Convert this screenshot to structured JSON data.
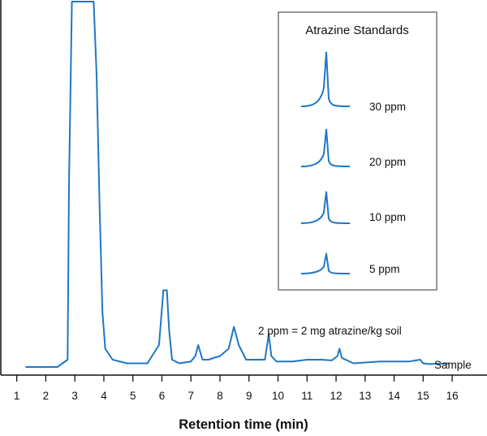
{
  "chart_data": {
    "type": "line",
    "title": "",
    "xlabel": "Retention time (min)",
    "ylabel": "",
    "x_ticks": [
      1,
      2,
      3,
      4,
      5,
      6,
      7,
      8,
      9,
      10,
      11,
      12,
      13,
      14,
      15,
      16
    ],
    "xlim": [
      0.45,
      17.2
    ],
    "ylim": [
      0,
      1
    ],
    "grid": false,
    "line_color": "#1f77c4",
    "sample": {
      "label": "Sample",
      "x": [
        1.3,
        2.4,
        2.75,
        2.8,
        2.9,
        3.0,
        3.2,
        3.5,
        3.65,
        3.75,
        3.85,
        3.95,
        4.05,
        4.3,
        4.8,
        5.5,
        5.9,
        6.05,
        6.17,
        6.25,
        6.35,
        6.6,
        7.0,
        7.15,
        7.25,
        7.4,
        7.6,
        8.0,
        8.3,
        8.48,
        8.65,
        8.9,
        9.2,
        9.55,
        9.68,
        9.77,
        9.95,
        10.5,
        11.0,
        11.5,
        11.85,
        12.05,
        12.12,
        12.2,
        12.6,
        13.5,
        14.0,
        14.5,
        14.9,
        15.0,
        15.2,
        15.9
      ],
      "y": [
        0.0,
        0.0,
        0.02,
        0.5,
        1.0,
        1.0,
        1.0,
        1.0,
        1.0,
        0.8,
        0.45,
        0.15,
        0.05,
        0.02,
        0.01,
        0.01,
        0.06,
        0.21,
        0.21,
        0.1,
        0.02,
        0.01,
        0.015,
        0.03,
        0.06,
        0.02,
        0.02,
        0.03,
        0.05,
        0.11,
        0.06,
        0.02,
        0.02,
        0.02,
        0.09,
        0.03,
        0.015,
        0.015,
        0.02,
        0.02,
        0.018,
        0.03,
        0.05,
        0.025,
        0.01,
        0.015,
        0.015,
        0.015,
        0.02,
        0.01,
        0.008,
        0.01
      ]
    },
    "annotation": "2 ppm = 2 mg atrazine/kg soil",
    "legend": {
      "title": "Atrazine Standards",
      "placement": "top-right",
      "standards": [
        {
          "label": "30 ppm",
          "concentration": 30,
          "peak": 0.95
        },
        {
          "label": "20 ppm",
          "concentration": 20,
          "peak": 0.65
        },
        {
          "label": "10 ppm",
          "concentration": 10,
          "peak": 0.55
        },
        {
          "label": "5 ppm",
          "concentration": 5,
          "peak": 0.35
        }
      ]
    }
  }
}
